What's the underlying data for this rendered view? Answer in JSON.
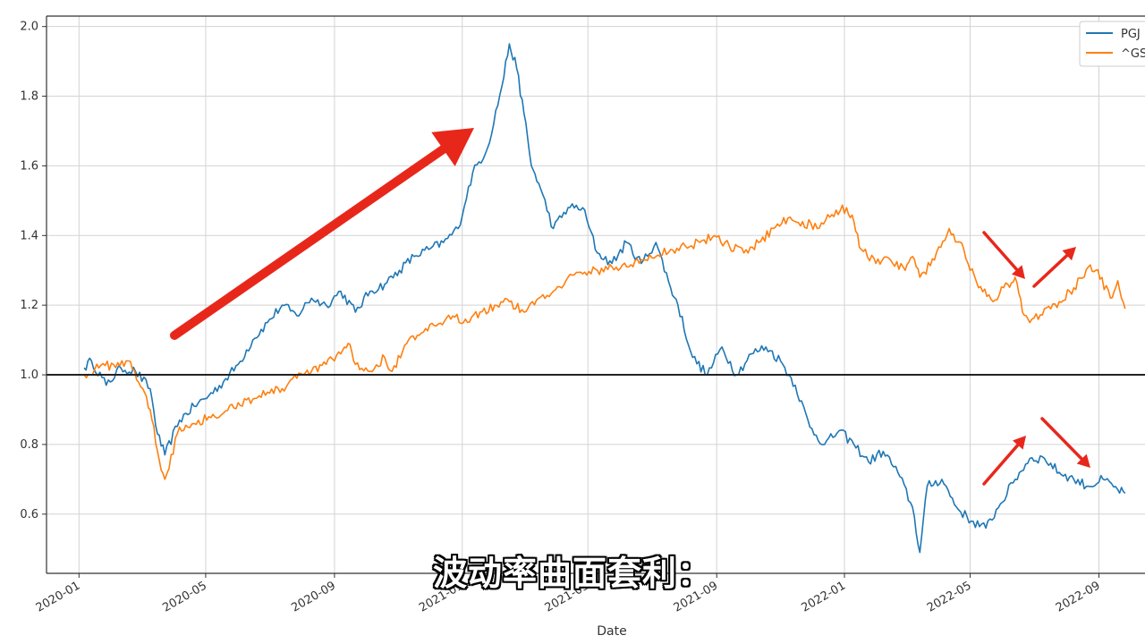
{
  "chart_data": {
    "type": "line",
    "xlabel": "Date",
    "ylabel": "",
    "ylim": [
      0.43,
      2.03
    ],
    "xlim": [
      "2019-12-01",
      "2022-10-15"
    ],
    "grid": true,
    "legend_placement": "top-right",
    "y_ticks": [
      "0.6",
      "0.8",
      "1.0",
      "1.2",
      "1.4",
      "1.6",
      "1.8",
      "2.0"
    ],
    "x_ticks": [
      "2020-01",
      "2020-05",
      "2020-09",
      "2021-01",
      "2021-05",
      "2021-09",
      "2022-01",
      "2022-05",
      "2022-09"
    ],
    "reference_line": 1.0,
    "series": [
      {
        "name": "PGJ",
        "color": "#1f77b4",
        "x": [
          "2020-01-06",
          "2020-01-13",
          "2020-01-27",
          "2020-02-10",
          "2020-02-24",
          "2020-03-09",
          "2020-03-16",
          "2020-03-23",
          "2020-04-06",
          "2020-04-20",
          "2020-05-04",
          "2020-05-18",
          "2020-06-01",
          "2020-06-15",
          "2020-06-29",
          "2020-07-13",
          "2020-07-27",
          "2020-08-10",
          "2020-08-24",
          "2020-09-07",
          "2020-09-21",
          "2020-10-05",
          "2020-10-19",
          "2020-11-02",
          "2020-11-16",
          "2020-11-30",
          "2020-12-14",
          "2020-12-28",
          "2021-01-11",
          "2021-01-25",
          "2021-02-08",
          "2021-02-15",
          "2021-02-22",
          "2021-03-01",
          "2021-03-08",
          "2021-03-15",
          "2021-03-29",
          "2021-04-12",
          "2021-04-26",
          "2021-05-10",
          "2021-05-24",
          "2021-06-07",
          "2021-06-21",
          "2021-07-05",
          "2021-07-19",
          "2021-07-26",
          "2021-08-09",
          "2021-08-23",
          "2021-09-06",
          "2021-09-20",
          "2021-10-04",
          "2021-10-18",
          "2021-11-01",
          "2021-11-15",
          "2021-11-29",
          "2021-12-13",
          "2021-12-27",
          "2022-01-10",
          "2022-01-24",
          "2022-02-07",
          "2022-02-21",
          "2022-03-07",
          "2022-03-14",
          "2022-03-21",
          "2022-04-04",
          "2022-04-18",
          "2022-05-02",
          "2022-05-16",
          "2022-05-30",
          "2022-06-13",
          "2022-06-27",
          "2022-07-11",
          "2022-07-25",
          "2022-08-08",
          "2022-08-22",
          "2022-09-05",
          "2022-09-19",
          "2022-09-26"
        ],
        "values": [
          1.02,
          1.04,
          0.97,
          1.02,
          1.01,
          0.96,
          0.83,
          0.77,
          0.87,
          0.91,
          0.94,
          0.98,
          1.03,
          1.1,
          1.15,
          1.2,
          1.17,
          1.22,
          1.2,
          1.24,
          1.18,
          1.24,
          1.26,
          1.3,
          1.34,
          1.36,
          1.38,
          1.42,
          1.58,
          1.65,
          1.83,
          1.95,
          1.88,
          1.75,
          1.6,
          1.55,
          1.42,
          1.48,
          1.48,
          1.35,
          1.32,
          1.38,
          1.32,
          1.38,
          1.25,
          1.2,
          1.05,
          1.0,
          1.08,
          1.0,
          1.06,
          1.08,
          1.04,
          0.97,
          0.85,
          0.8,
          0.84,
          0.8,
          0.75,
          0.78,
          0.72,
          0.62,
          0.49,
          0.68,
          0.7,
          0.62,
          0.58,
          0.56,
          0.63,
          0.7,
          0.76,
          0.76,
          0.72,
          0.7,
          0.68,
          0.7,
          0.67,
          0.66
        ]
      },
      {
        "name": "^GS",
        "color": "#ff7f0e",
        "x": [
          "2020-01-06",
          "2020-01-20",
          "2020-02-03",
          "2020-02-17",
          "2020-03-02",
          "2020-03-09",
          "2020-03-16",
          "2020-03-23",
          "2020-04-06",
          "2020-04-20",
          "2020-05-04",
          "2020-05-18",
          "2020-06-01",
          "2020-06-15",
          "2020-06-29",
          "2020-07-13",
          "2020-07-27",
          "2020-08-10",
          "2020-08-24",
          "2020-09-07",
          "2020-09-14",
          "2020-09-21",
          "2020-10-05",
          "2020-10-19",
          "2020-10-26",
          "2020-11-09",
          "2020-11-23",
          "2020-12-07",
          "2020-12-21",
          "2021-01-04",
          "2021-01-18",
          "2021-02-01",
          "2021-02-15",
          "2021-03-01",
          "2021-03-15",
          "2021-03-29",
          "2021-04-12",
          "2021-04-26",
          "2021-05-10",
          "2021-05-24",
          "2021-06-07",
          "2021-06-21",
          "2021-07-05",
          "2021-07-19",
          "2021-08-02",
          "2021-08-16",
          "2021-08-30",
          "2021-09-13",
          "2021-09-27",
          "2021-10-11",
          "2021-10-25",
          "2021-11-08",
          "2021-11-22",
          "2021-12-06",
          "2021-12-20",
          "2022-01-03",
          "2022-01-10",
          "2022-01-17",
          "2022-01-31",
          "2022-02-14",
          "2022-02-28",
          "2022-03-07",
          "2022-03-14",
          "2022-03-28",
          "2022-04-11",
          "2022-04-25",
          "2022-05-09",
          "2022-05-23",
          "2022-06-06",
          "2022-06-13",
          "2022-06-20",
          "2022-06-27",
          "2022-07-11",
          "2022-07-25",
          "2022-08-08",
          "2022-08-22",
          "2022-08-29",
          "2022-09-12",
          "2022-09-19",
          "2022-09-26"
        ],
        "values": [
          1.0,
          1.02,
          1.03,
          1.04,
          0.96,
          0.9,
          0.78,
          0.7,
          0.85,
          0.86,
          0.88,
          0.89,
          0.92,
          0.93,
          0.95,
          0.96,
          0.99,
          1.01,
          1.03,
          1.06,
          1.09,
          1.03,
          1.01,
          1.05,
          1.01,
          1.09,
          1.12,
          1.14,
          1.16,
          1.16,
          1.18,
          1.2,
          1.21,
          1.18,
          1.22,
          1.24,
          1.28,
          1.29,
          1.3,
          1.31,
          1.31,
          1.33,
          1.34,
          1.36,
          1.37,
          1.38,
          1.4,
          1.37,
          1.35,
          1.38,
          1.42,
          1.45,
          1.44,
          1.42,
          1.46,
          1.48,
          1.44,
          1.36,
          1.32,
          1.33,
          1.3,
          1.34,
          1.28,
          1.33,
          1.42,
          1.36,
          1.25,
          1.21,
          1.26,
          1.28,
          1.18,
          1.15,
          1.19,
          1.21,
          1.25,
          1.31,
          1.3,
          1.22,
          1.27,
          1.19
        ]
      }
    ]
  },
  "legend": {
    "items": [
      {
        "name": "PGJ",
        "color": "#1f77b4"
      },
      {
        "name": "^GS",
        "color": "#ff7f0e"
      }
    ]
  },
  "annotations": {
    "arrow_color": "#e8271b"
  },
  "overlay": {
    "subtitle": "波动率曲面套利："
  }
}
